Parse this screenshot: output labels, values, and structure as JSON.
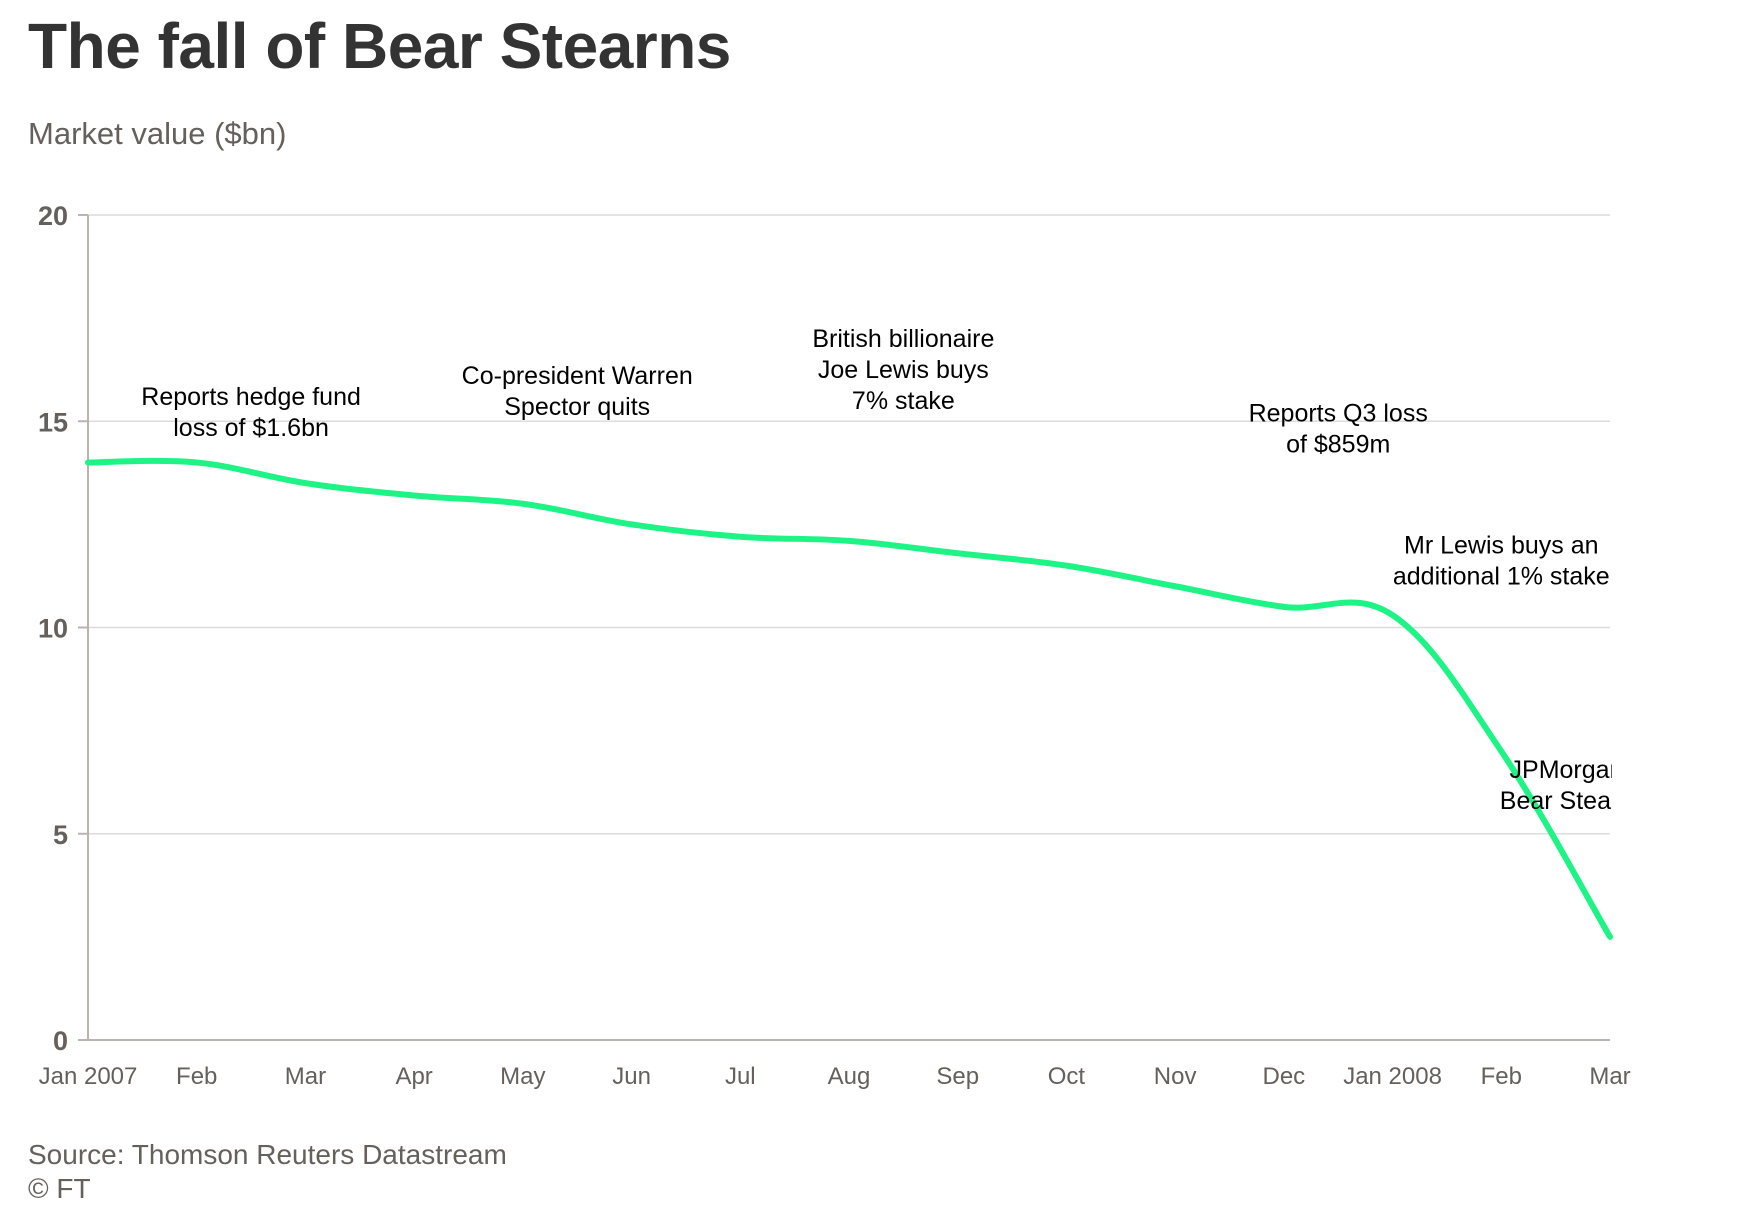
{
  "title": "The fall of Bear Stearns",
  "subtitle": "Market value ($bn)",
  "source": "Source: Thomson Reuters Datastream",
  "copyright": "© FT",
  "chart_data": {
    "type": "line",
    "title": "The fall of Bear Stearns",
    "ylabel": "Market value ($bn)",
    "xlabel": "",
    "ylim": [
      0,
      20
    ],
    "yticks": [
      0,
      5,
      10,
      15,
      20
    ],
    "grid": true,
    "line_color": "#1ef486",
    "x_tick_labels": [
      "Jan 2007",
      "Feb",
      "Mar",
      "Apr",
      "May",
      "Jun",
      "Jul",
      "Aug",
      "Sep",
      "Oct",
      "Nov",
      "Dec",
      "Jan 2008",
      "Feb",
      "Mar"
    ],
    "x": [
      "2007-01",
      "2007-02",
      "2007-03",
      "2007-04",
      "2007-05",
      "2007-06",
      "2007-07",
      "2007-08",
      "2007-09",
      "2007-10",
      "2007-11",
      "2007-12",
      "2008-01",
      "2008-02",
      "2008-03"
    ],
    "series": [
      {
        "values": [
          14.0,
          14.0,
          13.5,
          13.2,
          13.0,
          12.5,
          12.2,
          12.1,
          11.8,
          11.5,
          11.0,
          10.5,
          10.3,
          7.0,
          2.5
        ]
      }
    ],
    "annotations": [
      {
        "lines": [
          "Reports hedge fund",
          "loss of $1.6bn"
        ],
        "x": 1.5,
        "y": 15.4
      },
      {
        "lines": [
          "Co-president Warren",
          "Spector quits"
        ],
        "x": 4.5,
        "y": 15.9
      },
      {
        "lines": [
          "British billionaire",
          "Joe Lewis buys",
          "7% stake"
        ],
        "x": 7.5,
        "y": 16.8
      },
      {
        "lines": [
          "Reports Q3 loss",
          "of $859m"
        ],
        "x": 11.5,
        "y": 15.0
      },
      {
        "lines": [
          "Mr Lewis buys an",
          "additional 1% stake"
        ],
        "x": 13.0,
        "y": 11.8
      },
      {
        "lines": [
          "JPMorgan",
          "Bear Stearn"
        ],
        "x": 13.6,
        "y": 6.35
      }
    ]
  }
}
